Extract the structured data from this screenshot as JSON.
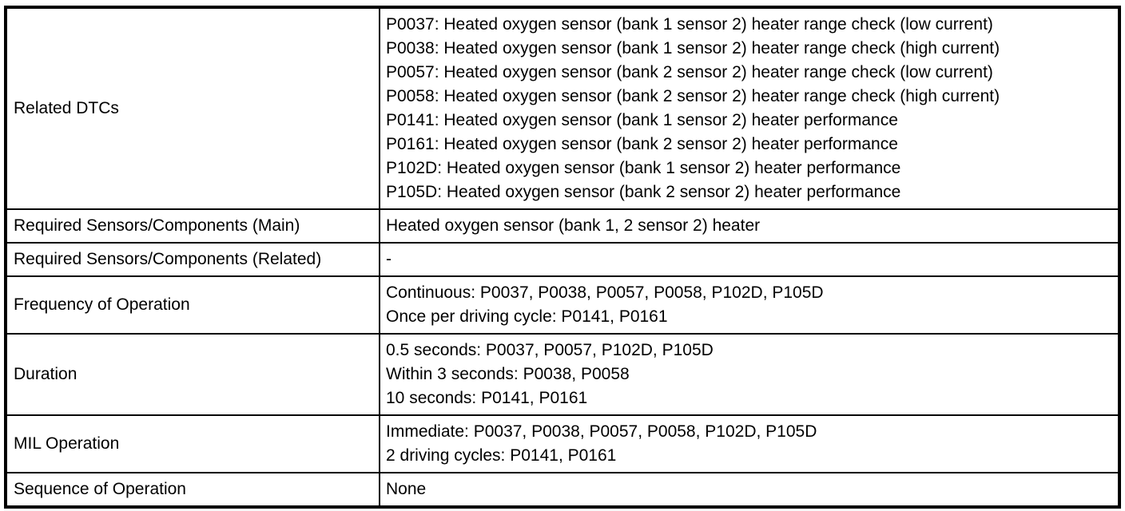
{
  "colors": {
    "border": "#000000",
    "text": "#000000",
    "background": "#ffffff"
  },
  "table": {
    "rows": [
      {
        "label": "Related DTCs",
        "lines": [
          "P0037: Heated oxygen sensor (bank 1 sensor 2) heater range check (low current)",
          "P0038: Heated oxygen sensor (bank 1 sensor 2) heater range check (high current)",
          "P0057: Heated oxygen sensor (bank 2 sensor 2) heater range check (low current)",
          "P0058: Heated oxygen sensor (bank 2 sensor 2) heater range check (high current)",
          "P0141: Heated oxygen sensor (bank 1 sensor 2) heater performance",
          "P0161: Heated oxygen sensor (bank 2 sensor 2) heater performance",
          "P102D: Heated oxygen sensor (bank 1 sensor 2) heater performance",
          "P105D: Heated oxygen sensor (bank 2 sensor 2) heater performance"
        ]
      },
      {
        "label": "Required Sensors/Components (Main)",
        "lines": [
          "Heated oxygen sensor (bank 1, 2 sensor 2) heater"
        ]
      },
      {
        "label": "Required Sensors/Components (Related)",
        "lines": [
          "-"
        ]
      },
      {
        "label": "Frequency of Operation",
        "lines": [
          "Continuous: P0037, P0038, P0057, P0058, P102D, P105D",
          "Once per driving cycle: P0141, P0161"
        ]
      },
      {
        "label": "Duration",
        "lines": [
          "0.5 seconds: P0037, P0057, P102D, P105D",
          "Within 3 seconds: P0038, P0058",
          "10 seconds: P0141, P0161"
        ]
      },
      {
        "label": "MIL Operation",
        "lines": [
          "Immediate: P0037, P0038, P0057, P0058, P102D, P105D",
          "2 driving cycles: P0141, P0161"
        ]
      },
      {
        "label": "Sequence of Operation",
        "lines": [
          "None"
        ]
      }
    ]
  }
}
